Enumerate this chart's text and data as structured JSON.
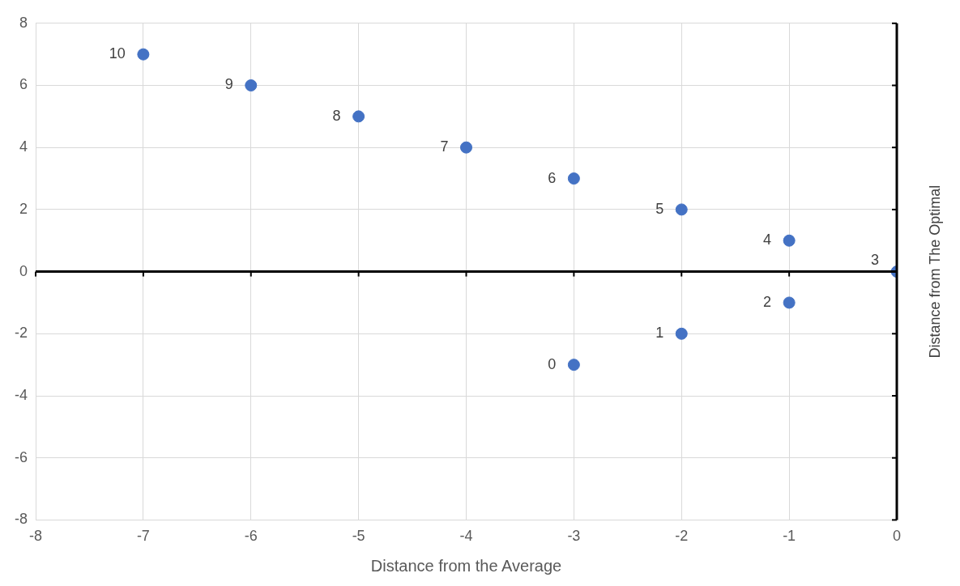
{
  "chart_data": {
    "type": "scatter",
    "xlabel": "Distance from the Average",
    "ylabel": "Distance from The Optimal",
    "x": [
      -3,
      -2,
      -1,
      0,
      -1,
      -2,
      -3,
      -4,
      -5,
      -6,
      -7
    ],
    "series": [
      {
        "color": "#4472c4",
        "values": [
          -3,
          -2,
          -1,
          0,
          1,
          2,
          3,
          4,
          5,
          6,
          7
        ]
      }
    ],
    "annotations": [
      {
        "text": "0",
        "x": -3,
        "y": -3
      },
      {
        "text": "1",
        "x": -2,
        "y": -2
      },
      {
        "text": "2",
        "x": -1,
        "y": -1
      },
      {
        "text": "3",
        "x": 0,
        "y": 0
      },
      {
        "text": "4",
        "x": -1,
        "y": 1
      },
      {
        "text": "5",
        "x": -2,
        "y": 2
      },
      {
        "text": "6",
        "x": -3,
        "y": 3
      },
      {
        "text": "7",
        "x": -4,
        "y": 4
      },
      {
        "text": "8",
        "x": -5,
        "y": 5
      },
      {
        "text": "9",
        "x": -6,
        "y": 6
      },
      {
        "text": "10",
        "x": -7,
        "y": 7
      }
    ],
    "xlim": [
      -8,
      0
    ],
    "xticks": [
      -8,
      -7,
      -6,
      -5,
      -4,
      -3,
      -2,
      -1,
      0
    ],
    "ylim": [
      -8,
      8
    ],
    "yticks": [
      -8,
      -6,
      -4,
      -2,
      0,
      2,
      4,
      6,
      8
    ],
    "grid": true,
    "legend": false,
    "marker": "circle"
  }
}
